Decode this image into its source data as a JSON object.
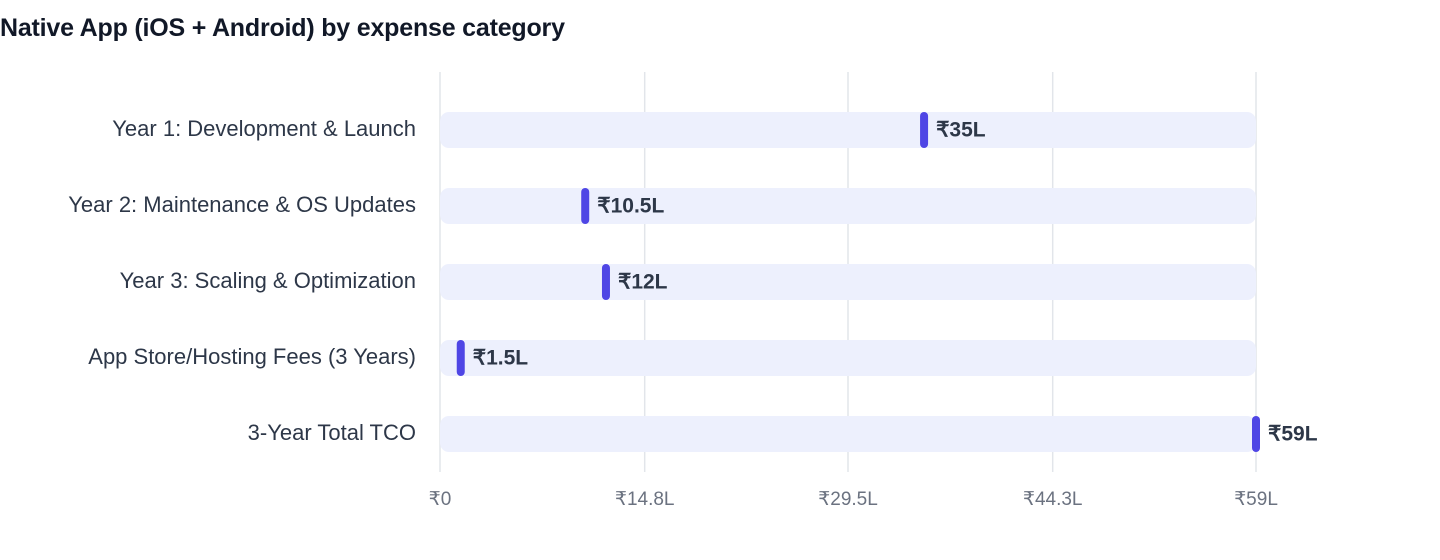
{
  "chart_data": {
    "type": "bar",
    "title": "Native App (iOS + Android) by expense category",
    "categories": [
      "Year 1: Development & Launch",
      "Year 2: Maintenance & OS Updates",
      "Year 3: Scaling & Optimization",
      "App Store/Hosting Fees (3 Years)",
      "3-Year Total TCO"
    ],
    "values": [
      35,
      10.5,
      12,
      1.5,
      59
    ],
    "value_labels": [
      "₹35L",
      "₹10.5L",
      "₹12L",
      "₹1.5L",
      "₹59L"
    ],
    "unit": "lakh ₹",
    "orientation": "horizontal",
    "xlim": [
      0,
      59
    ],
    "x_ticks": [
      0,
      14.8,
      29.5,
      44.3,
      59
    ],
    "x_tick_labels": [
      "₹0",
      "₹14.8L",
      "₹29.5L",
      "₹44.3L",
      "₹59L"
    ],
    "xlabel": "",
    "ylabel": "",
    "grid": true,
    "legend": "none",
    "colors": {
      "marker": "#4f46e5",
      "track": "#edf0fd",
      "grid": "#e2e5ea",
      "title": "#111827",
      "label": "#2d3748",
      "tick": "#6b7280"
    }
  }
}
